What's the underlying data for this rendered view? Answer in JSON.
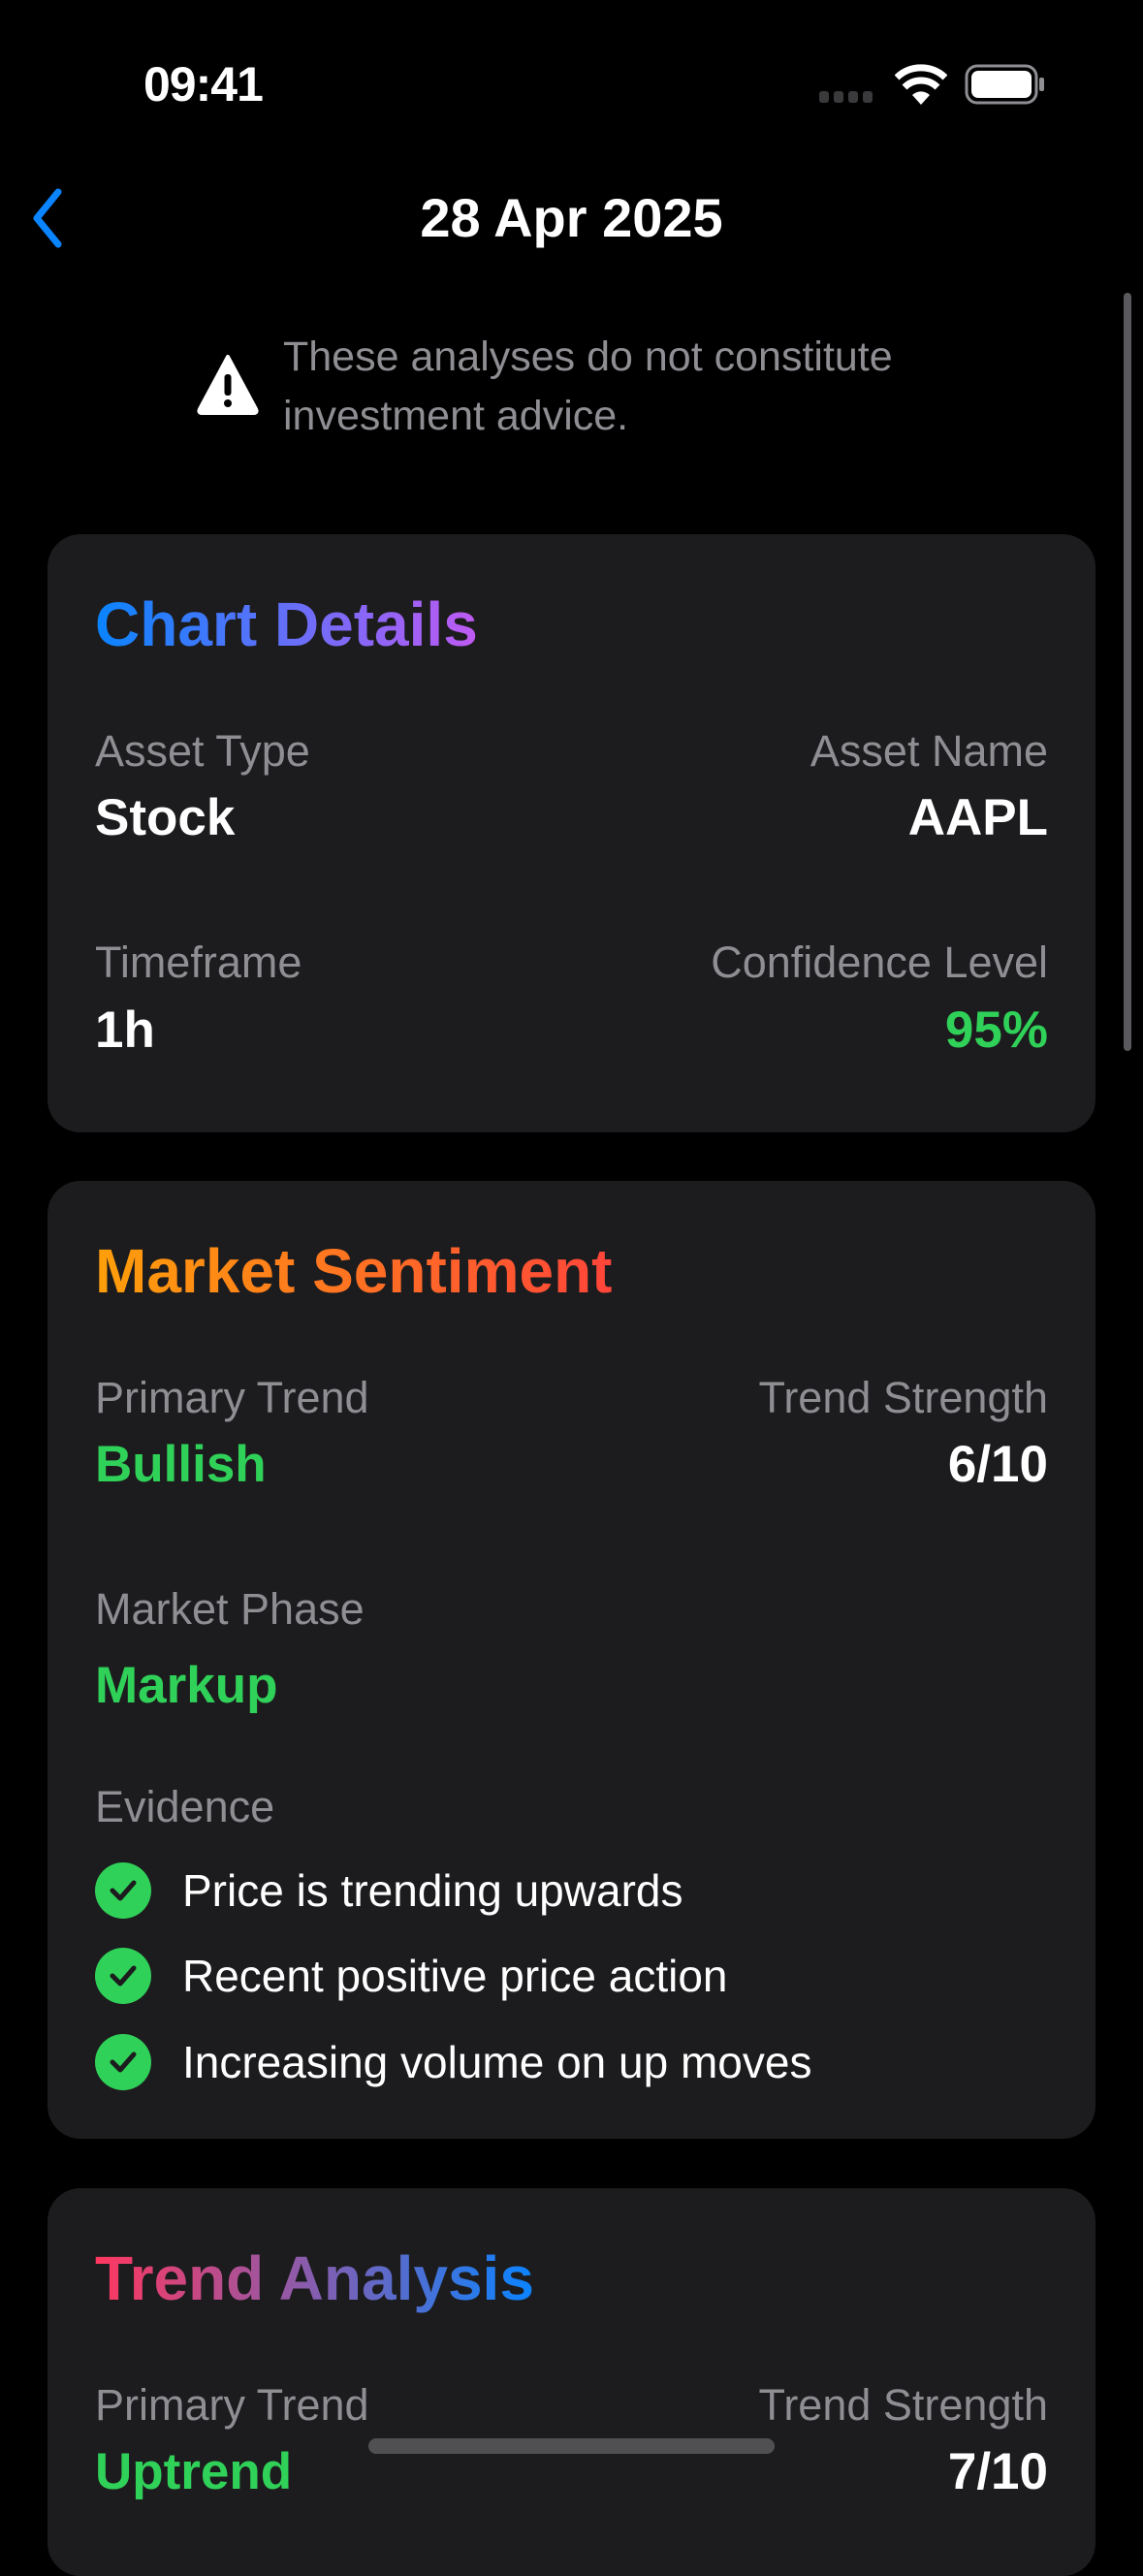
{
  "status_bar": {
    "time": "09:41",
    "icons": [
      "signal-icon",
      "wifi-icon",
      "battery-icon"
    ]
  },
  "nav": {
    "title": "28 Apr 2025",
    "back_icon": "chevron-left-icon"
  },
  "disclaimer": {
    "icon": "warning-icon",
    "text": "These analyses do not constitute investment advice."
  },
  "chart_details": {
    "title": "Chart Details",
    "asset_type_label": "Asset Type",
    "asset_type": "Stock",
    "asset_name_label": "Asset Name",
    "asset_name": "AAPL",
    "timeframe_label": "Timeframe",
    "timeframe": "1h",
    "confidence_label": "Confidence Level",
    "confidence": "95%"
  },
  "market_sentiment": {
    "title": "Market Sentiment",
    "primary_trend_label": "Primary Trend",
    "primary_trend": "Bullish",
    "trend_strength_label": "Trend Strength",
    "trend_strength": "6/10",
    "market_phase_label": "Market Phase",
    "market_phase": "Markup",
    "evidence_label": "Evidence",
    "evidence": [
      "Price is trending upwards",
      "Recent positive price action",
      "Increasing volume on up moves"
    ]
  },
  "trend_analysis": {
    "title": "Trend Analysis",
    "primary_trend_label": "Primary Trend",
    "primary_trend": "Uptrend",
    "trend_strength_label": "Trend Strength",
    "trend_strength": "7/10"
  },
  "colors": {
    "accent_blue": "#0a84ff",
    "positive_green": "#30d158",
    "card_bg": "#1c1c1e",
    "secondary_text": "#8e8e93"
  }
}
